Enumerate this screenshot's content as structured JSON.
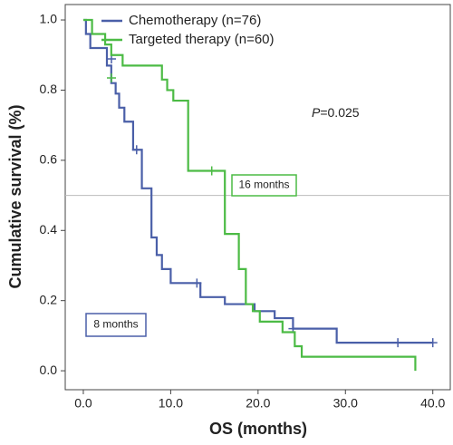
{
  "chart_data": {
    "type": "km",
    "x_label": "OS (months)",
    "y_label": "Cumulative survival (%)",
    "xlim": [
      -2.07,
      42.0
    ],
    "ylim": [
      -0.054,
      1.044
    ],
    "xticks": [
      {
        "value": 0,
        "label": "0.0"
      },
      {
        "value": 10,
        "label": "10.0"
      },
      {
        "value": 20,
        "label": "20.0"
      },
      {
        "value": 30,
        "label": "30.0"
      },
      {
        "value": 40,
        "label": "40.0"
      }
    ],
    "yticks": [
      {
        "value": 0,
        "label": "0.0"
      },
      {
        "value": 0.2,
        "label": "0.2"
      },
      {
        "value": 0.4,
        "label": "0.4"
      },
      {
        "value": 0.6,
        "label": "0.6"
      },
      {
        "value": 0.8,
        "label": "0.8"
      },
      {
        "value": 1.0,
        "label": "1.0"
      }
    ],
    "reference_line": 0.5,
    "series": [
      {
        "name": "Chemotherapy (n=76)",
        "color": "#4a5fa8",
        "x": [
          0,
          0.3,
          0.8,
          2.7,
          3.2,
          3.7,
          4.1,
          4.7,
          5.7,
          6.7,
          7.8,
          8.4,
          9.0,
          10.0,
          13.4,
          16.2,
          19.6,
          21.9,
          24.0,
          29.0,
          40.0
        ],
        "values": [
          1.0,
          0.96,
          0.92,
          0.87,
          0.82,
          0.79,
          0.75,
          0.71,
          0.63,
          0.52,
          0.38,
          0.33,
          0.29,
          0.25,
          0.21,
          0.19,
          0.17,
          0.15,
          0.12,
          0.08,
          0.08
        ],
        "censor_x": [
          6.1,
          13.0,
          24.0,
          36.0,
          40.0
        ],
        "censor_values": [
          0.63,
          0.25,
          0.12,
          0.08,
          0.08
        ]
      },
      {
        "name": "Targeted therapy (n=60)",
        "color": "#4cbb45",
        "x": [
          0,
          1.0,
          2.5,
          3.2,
          4.5,
          9.0,
          9.6,
          10.3,
          12.0,
          16.2,
          17.8,
          18.6,
          19.4,
          20.2,
          22.8,
          24.2,
          25.0,
          38.0
        ],
        "values": [
          1.0,
          0.96,
          0.93,
          0.9,
          0.87,
          0.83,
          0.8,
          0.77,
          0.57,
          0.39,
          0.29,
          0.19,
          0.17,
          0.14,
          0.11,
          0.07,
          0.04,
          0.0
        ],
        "censor_x": [
          14.7
        ],
        "censor_values": [
          0.57
        ]
      }
    ],
    "annotations": [
      {
        "text": "8 months",
        "color": "#4a5fa8"
      },
      {
        "text": "16 months",
        "color": "#4cbb45"
      }
    ],
    "p_symbol": "P",
    "p_text": "=0.025"
  }
}
